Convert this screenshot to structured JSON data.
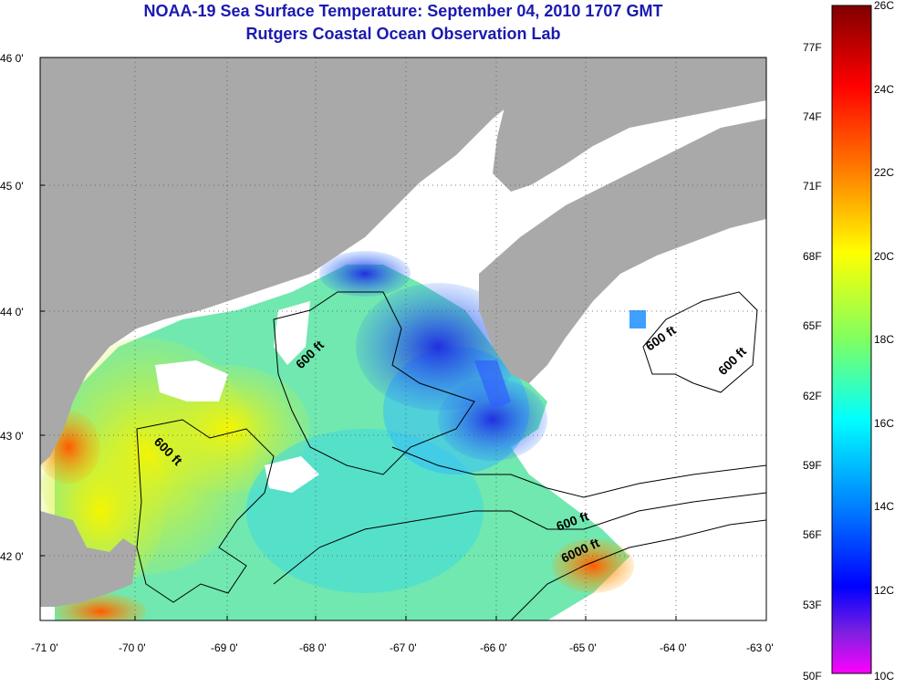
{
  "header": {
    "title": "NOAA-19 Sea Surface Temperature:  September 04, 2010 1707 GMT",
    "subtitle": "Rutgers Coastal Ocean Observation Lab"
  },
  "axes": {
    "lat_labels": [
      "46 0'",
      "45 0'",
      "44 0'",
      "43 0'",
      "42 0'"
    ],
    "lon_labels": [
      "-71 0'",
      "-70 0'",
      "-69 0'",
      "-68 0'",
      "-67 0'",
      "-66 0'",
      "-65 0'",
      "-64 0'",
      "-63 0'"
    ]
  },
  "contours": {
    "labels": [
      "600 ft",
      "600 ft",
      "600 ft",
      "600 ft",
      "600 ft",
      "6000 ft"
    ]
  },
  "colorbar": {
    "celsius": [
      "26C",
      "24C",
      "22C",
      "20C",
      "18C",
      "16C",
      "14C",
      "12C",
      "10C"
    ],
    "fahrenheit": [
      "77F",
      "74F",
      "71F",
      "68F",
      "65F",
      "62F",
      "59F",
      "56F",
      "53F",
      "50F"
    ]
  },
  "colors": {
    "land": "#a9a9a9",
    "title": "#1a1ab0",
    "cloud": "#ffffff"
  }
}
